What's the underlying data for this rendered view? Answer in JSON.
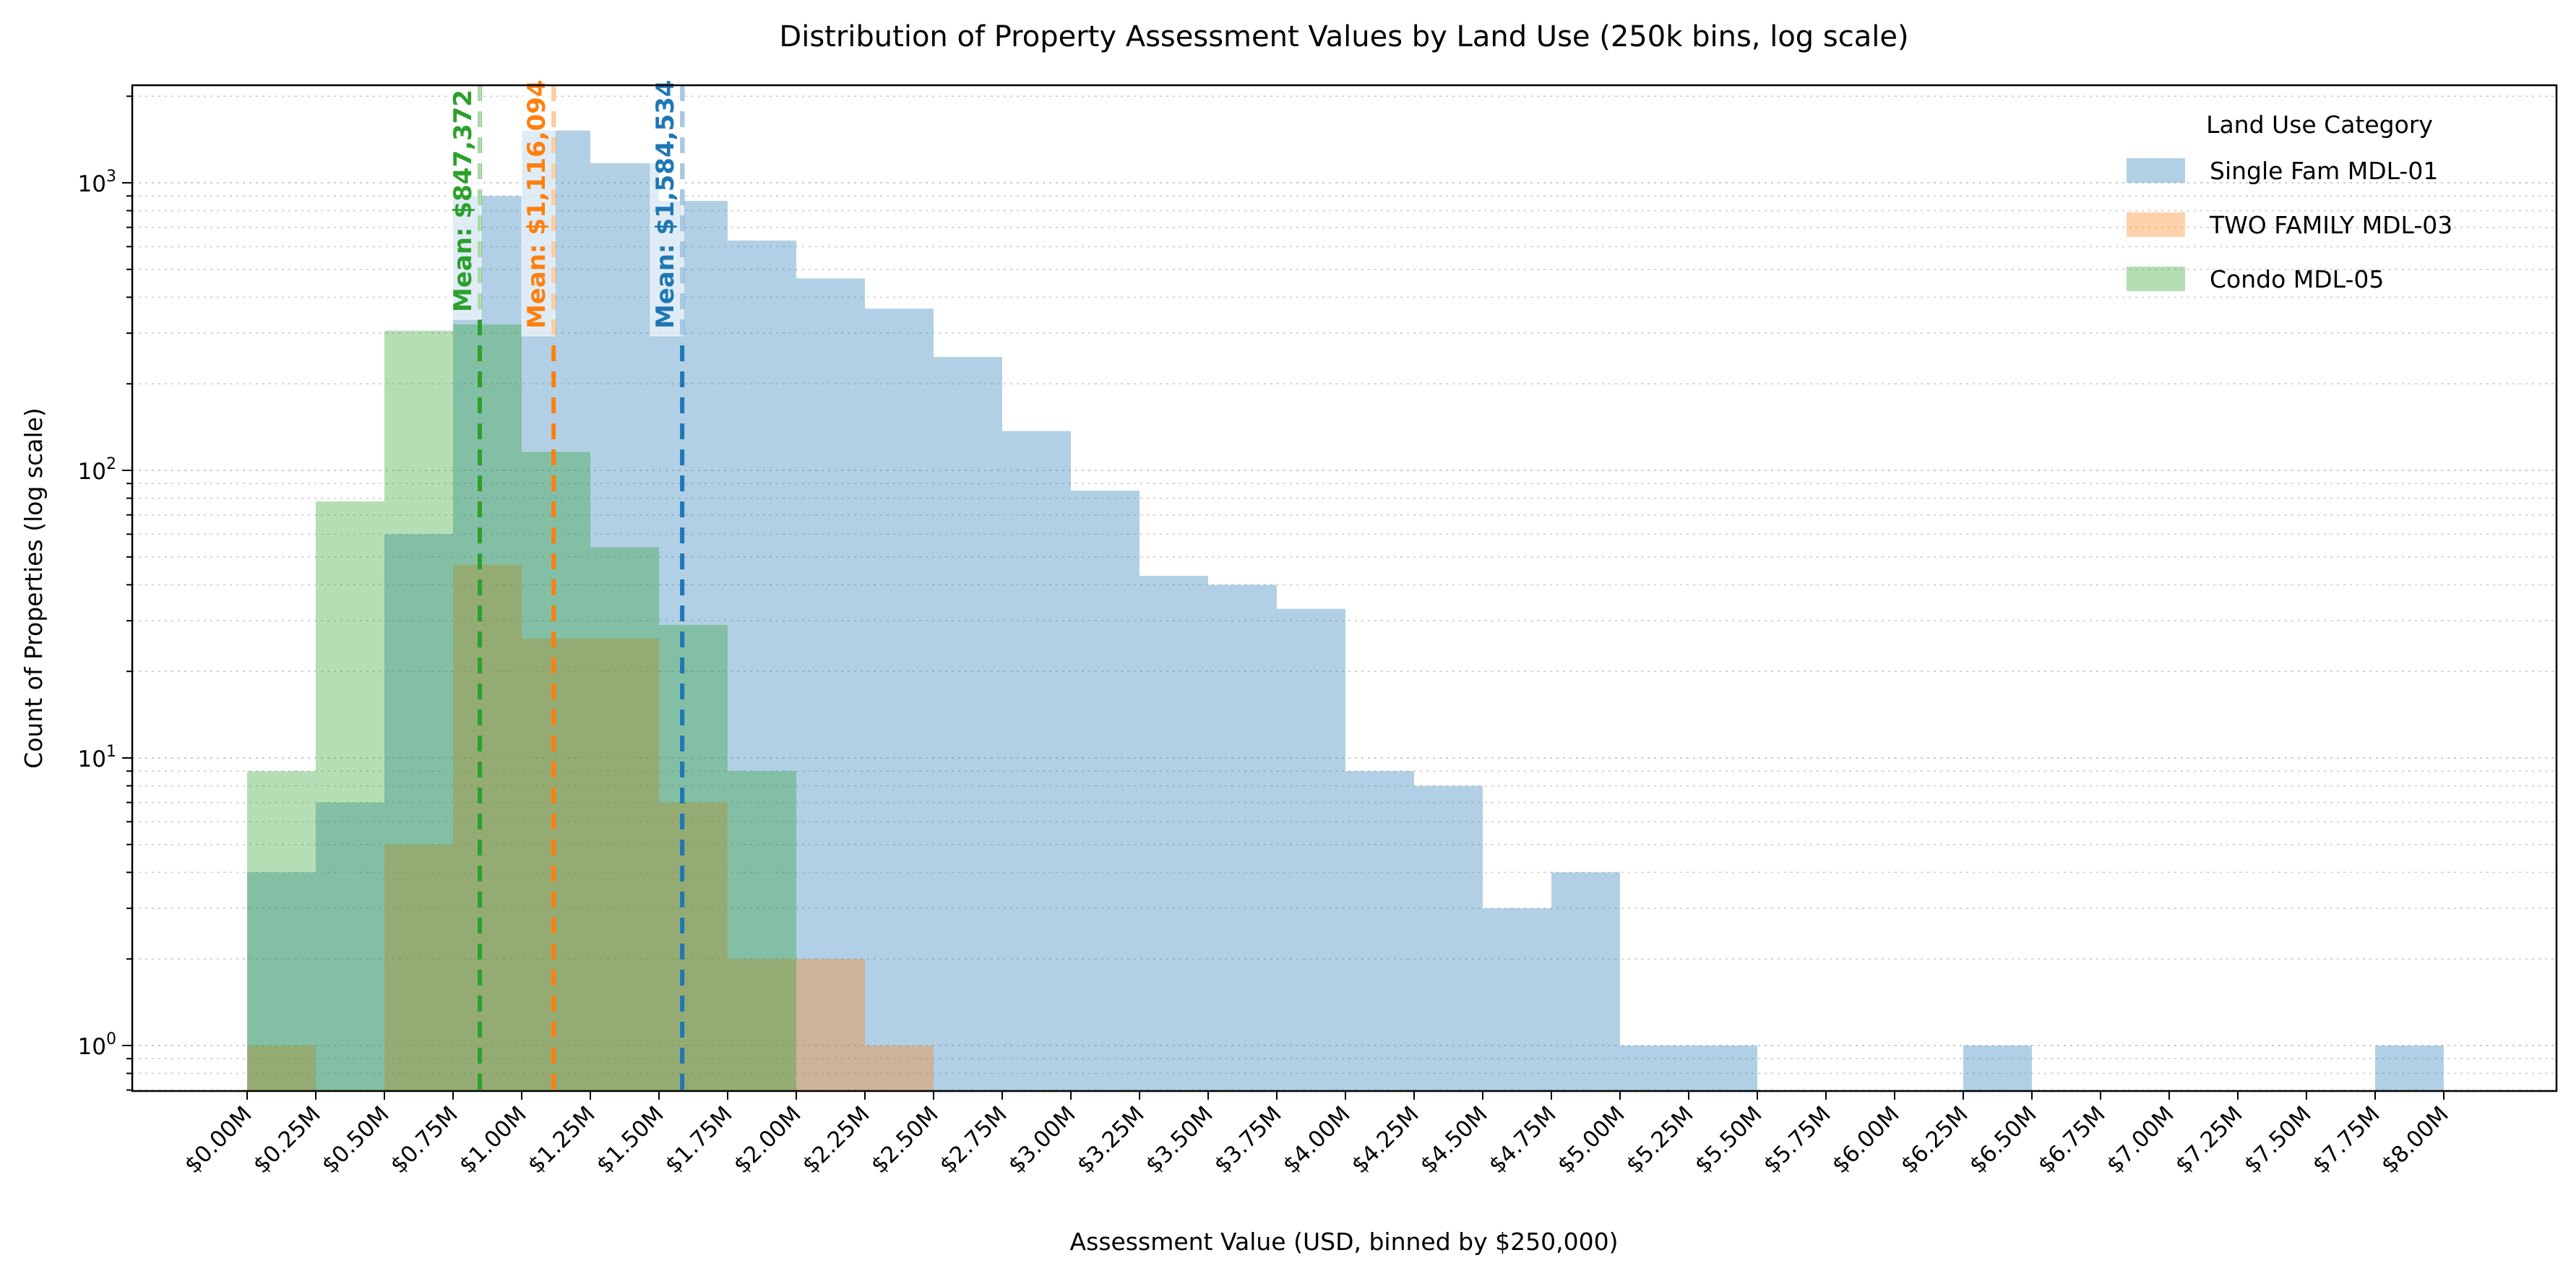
{
  "chart_data": {
    "type": "bar",
    "subtype": "overlapping histogram",
    "title": "Distribution of Property Assessment Values by Land Use (250k bins, log scale)",
    "xlabel": "Assessment Value (USD, binned by $250,000)",
    "ylabel": "Count of Properties (log scale)",
    "yscale": "log",
    "ylim": [
      0.7,
      2180
    ],
    "y_ticks": [
      {
        "value": 1,
        "base": "10",
        "exp": "0"
      },
      {
        "value": 10,
        "base": "10",
        "exp": "1"
      },
      {
        "value": 100,
        "base": "10",
        "exp": "2"
      },
      {
        "value": 1000,
        "base": "10",
        "exp": "3"
      }
    ],
    "bin_width_millions": 0.25,
    "x_tick_labels": [
      "$0.00M",
      "$0.25M",
      "$0.50M",
      "$0.75M",
      "$1.00M",
      "$1.25M",
      "$1.50M",
      "$1.75M",
      "$2.00M",
      "$2.25M",
      "$2.50M",
      "$2.75M",
      "$3.00M",
      "$3.25M",
      "$3.50M",
      "$3.75M",
      "$4.00M",
      "$4.25M",
      "$4.50M",
      "$4.75M",
      "$5.00M",
      "$5.25M",
      "$5.50M",
      "$5.75M",
      "$6.00M",
      "$6.25M",
      "$6.50M",
      "$6.75M",
      "$7.00M",
      "$7.25M",
      "$7.50M",
      "$7.75M",
      "$8.00M"
    ],
    "grid": "y major and minor, dotted",
    "legend": {
      "title": "Land Use Category",
      "placement": "top-right"
    },
    "series": [
      {
        "name": "Single Fam  MDL-01",
        "color": "#1f77b4",
        "values": [
          4,
          7,
          60,
          900,
          1520,
          1170,
          865,
          630,
          465,
          365,
          248,
          137,
          85,
          43,
          40,
          33,
          9,
          8,
          3,
          4,
          1,
          1,
          0,
          0,
          0,
          1,
          0,
          0,
          0,
          0,
          0,
          1
        ],
        "mean_value_millions": 1.584534,
        "mean_label": "Mean: $1,584,534"
      },
      {
        "name": "TWO FAMILY  MDL-03",
        "color": "#ff7f0e",
        "values": [
          1,
          0,
          5,
          47,
          26,
          26,
          7,
          2,
          2,
          1,
          0,
          0,
          0,
          0,
          0,
          0,
          0,
          0,
          0,
          0,
          0,
          0,
          0,
          0,
          0,
          0,
          0,
          0,
          0,
          0,
          0,
          0
        ],
        "mean_value_millions": 1.116094,
        "mean_label": "Mean: $1,116,094"
      },
      {
        "name": "Condo  MDL-05",
        "color": "#2ca02c",
        "values": [
          9,
          78,
          306,
          322,
          116,
          54,
          29,
          9,
          0,
          0,
          0,
          0,
          0,
          0,
          0,
          0,
          0,
          0,
          0,
          0,
          0,
          0,
          0,
          0,
          0,
          0,
          0,
          0,
          0,
          0,
          0,
          0
        ],
        "mean_value_millions": 0.847372,
        "mean_label": "Mean: $847,372"
      }
    ]
  }
}
